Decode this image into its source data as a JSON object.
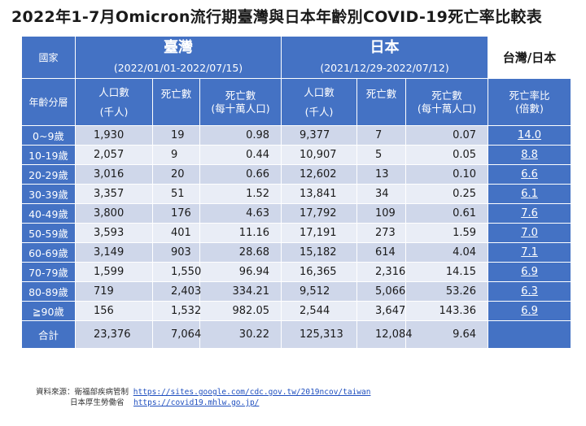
{
  "title": "2022年1-7月Omicron流行期臺灣與日本年齡別COVID-19死亡率比較表",
  "header": {
    "country_label": "國家",
    "age_label": "年齡分層",
    "taiwan": {
      "name": "臺灣",
      "period": "(2022/01/01-2022/07/15)"
    },
    "japan": {
      "name": "日本",
      "period": "(2021/12/29-2022/07/12)"
    },
    "ratio_top": "台灣/日本",
    "ratio_label_1": "死亡率比",
    "ratio_label_2": "(倍數)",
    "population_1": "人口數",
    "population_2": "(千人)",
    "deaths": "死亡數",
    "rate_1": "死亡數",
    "rate_2": "(每十萬人口)"
  },
  "rows": [
    {
      "age": "0~9歲",
      "tw_pop": "1,930",
      "tw_deaths": "19",
      "tw_rate": "0.98",
      "jp_pop": "9,377",
      "jp_deaths": "7",
      "jp_rate": "0.07",
      "ratio": "14.0"
    },
    {
      "age": "10-19歲",
      "tw_pop": "2,057",
      "tw_deaths": "9",
      "tw_rate": "0.44",
      "jp_pop": "10,907",
      "jp_deaths": "5",
      "jp_rate": "0.05",
      "ratio": "8.8"
    },
    {
      "age": "20-29歲",
      "tw_pop": "3,016",
      "tw_deaths": "20",
      "tw_rate": "0.66",
      "jp_pop": "12,602",
      "jp_deaths": "13",
      "jp_rate": "0.10",
      "ratio": "6.6"
    },
    {
      "age": "30-39歲",
      "tw_pop": "3,357",
      "tw_deaths": "51",
      "tw_rate": "1.52",
      "jp_pop": "13,841",
      "jp_deaths": "34",
      "jp_rate": "0.25",
      "ratio": "6.1"
    },
    {
      "age": "40-49歲",
      "tw_pop": "3,800",
      "tw_deaths": "176",
      "tw_rate": "4.63",
      "jp_pop": "17,792",
      "jp_deaths": "109",
      "jp_rate": "0.61",
      "ratio": "7.6"
    },
    {
      "age": "50-59歲",
      "tw_pop": "3,593",
      "tw_deaths": "401",
      "tw_rate": "11.16",
      "jp_pop": "17,191",
      "jp_deaths": "273",
      "jp_rate": "1.59",
      "ratio": "7.0"
    },
    {
      "age": "60-69歲",
      "tw_pop": "3,149",
      "tw_deaths": "903",
      "tw_rate": "28.68",
      "jp_pop": "15,182",
      "jp_deaths": "614",
      "jp_rate": "4.04",
      "ratio": "7.1"
    },
    {
      "age": "70-79歲",
      "tw_pop": "1,599",
      "tw_deaths": "1,550",
      "tw_rate": "96.94",
      "jp_pop": "16,365",
      "jp_deaths": "2,316",
      "jp_rate": "14.15",
      "ratio": "6.9"
    },
    {
      "age": "80-89歲",
      "tw_pop": "719",
      "tw_deaths": "2,403",
      "tw_rate": "334.21",
      "jp_pop": "9,512",
      "jp_deaths": "5,066",
      "jp_rate": "53.26",
      "ratio": "6.3"
    },
    {
      "age": "≧90歲",
      "tw_pop": "156",
      "tw_deaths": "1,532",
      "tw_rate": "982.05",
      "jp_pop": "2,544",
      "jp_deaths": "3,647",
      "jp_rate": "143.36",
      "ratio": "6.9"
    }
  ],
  "total": {
    "label": "合計",
    "tw_pop": "23,376",
    "tw_deaths": "7,064",
    "tw_rate": "30.22",
    "jp_pop": "125,313",
    "jp_deaths": "12,084",
    "jp_rate": "9.64"
  },
  "source": {
    "label": "資料來源：衛福部疾病管制",
    "link1": "https://sites.google.com/cdc.gov.tw/2019ncov/taiwan",
    "label2": "日本厚生勞働省",
    "link2": "https://covid19.mhlw.go.jp/"
  }
}
